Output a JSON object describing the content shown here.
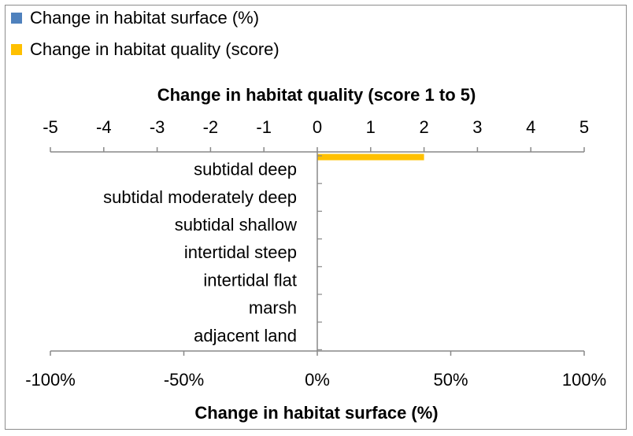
{
  "chart_data": {
    "type": "bar",
    "orientation": "horizontal",
    "categories": [
      "subtidal deep",
      "subtidal moderately deep",
      "subtidal shallow",
      "intertidal steep",
      "intertidal flat",
      "marsh",
      "adjacent land"
    ],
    "series": [
      {
        "name": "Change in habitat surface (%)",
        "axis": "bottom",
        "color": "#4f81bd",
        "values": [
          0,
          0,
          0,
          0,
          0,
          0,
          0
        ]
      },
      {
        "name": "Change in habitat quality (score)",
        "axis": "top",
        "color": "#ffc000",
        "values": [
          2,
          0,
          0,
          0,
          0,
          0,
          0
        ]
      }
    ],
    "top_axis": {
      "label": "Change in habitat quality (score 1 to 5)",
      "range": [
        -5,
        5
      ],
      "ticks": [
        "-5",
        "-4",
        "-3",
        "-2",
        "-1",
        "0",
        "1",
        "2",
        "3",
        "4",
        "5"
      ]
    },
    "bottom_axis": {
      "label": "Change in habitat surface (%)",
      "range": [
        -100,
        100
      ],
      "ticks": [
        "-100%",
        "-50%",
        "0%",
        "50%",
        "100%"
      ]
    },
    "legend_placement": "top-left",
    "grid": false
  }
}
